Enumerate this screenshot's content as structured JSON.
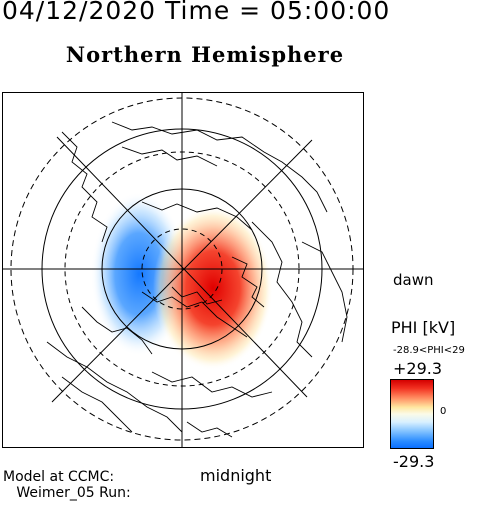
{
  "header": {
    "title_line": "04/12/2020 Time = 05:00:00"
  },
  "map": {
    "hemisphere_title": "Northern Hemisphere"
  },
  "orientation": {
    "dawn_label": "dawn",
    "midnight_label": "midnight"
  },
  "footer": {
    "model_text": "Model at CCMC:\n   Weimer_05 Run:"
  },
  "legend": {
    "title": "PHI [kV]",
    "range_text": "-28.9<PHI<29",
    "max_label": "+29.3",
    "zero_label": "0",
    "min_label": "-29.3",
    "colors": {
      "max": "#d40000",
      "mid": "#fbfbe8",
      "min": "#0a6fff"
    }
  }
}
